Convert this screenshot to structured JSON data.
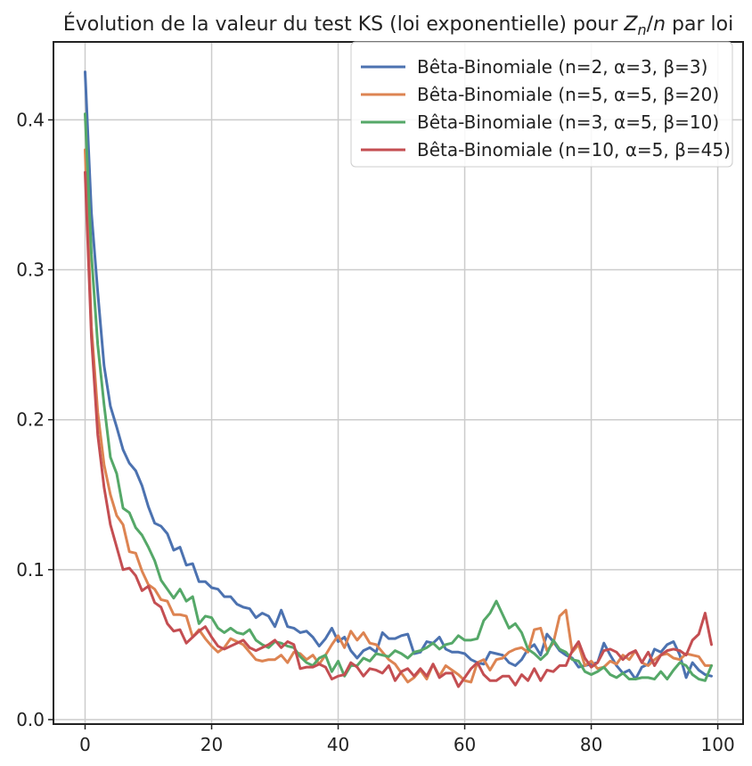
{
  "chart_data": {
    "type": "line",
    "title": "Évolution de la valeur du test KS (loi exponentielle) pour Z_n/n par loi",
    "title_parts": {
      "prefix": "Évolution de la valeur du test KS (loi exponentielle) pour ",
      "var_z": "Z",
      "var_sub": "n",
      "slash": "/",
      "var_n": "n",
      "suffix": " par loi"
    },
    "xlabel": "",
    "ylabel": "",
    "xlim": [
      -5,
      104
    ],
    "ylim": [
      -0.003,
      0.452
    ],
    "xticks": [
      0,
      20,
      40,
      60,
      80,
      100
    ],
    "xtick_labels": [
      "0",
      "20",
      "40",
      "60",
      "80",
      "100"
    ],
    "yticks": [
      0.0,
      0.1,
      0.2,
      0.3,
      0.4
    ],
    "ytick_labels": [
      "0.0",
      "0.1",
      "0.2",
      "0.3",
      "0.4"
    ],
    "grid": true,
    "legend_position": "top-right",
    "x_start": 0,
    "x_step": 1,
    "series": [
      {
        "name": "Bêta-Binomiale (n=2, α=3, β=3)",
        "color": "#4c72b0",
        "values": [
          0.432,
          0.338,
          0.285,
          0.236,
          0.209,
          0.195,
          0.18,
          0.171,
          0.166,
          0.156,
          0.142,
          0.131,
          0.129,
          0.124,
          0.113,
          0.115,
          0.103,
          0.104,
          0.092,
          0.092,
          0.088,
          0.087,
          0.082,
          0.082,
          0.077,
          0.075,
          0.074,
          0.068,
          0.071,
          0.069,
          0.062,
          0.073,
          0.062,
          0.061,
          0.058,
          0.059,
          0.055,
          0.049,
          0.054,
          0.061,
          0.052,
          0.055,
          0.046,
          0.041,
          0.046,
          0.048,
          0.045,
          0.058,
          0.054,
          0.054,
          0.056,
          0.057,
          0.044,
          0.045,
          0.052,
          0.051,
          0.055,
          0.047,
          0.045,
          0.045,
          0.044,
          0.04,
          0.038,
          0.037,
          0.045,
          0.044,
          0.043,
          0.038,
          0.036,
          0.04,
          0.047,
          0.05,
          0.043,
          0.057,
          0.052,
          0.046,
          0.043,
          0.041,
          0.035,
          0.036,
          0.037,
          0.038,
          0.051,
          0.043,
          0.036,
          0.031,
          0.033,
          0.027,
          0.035,
          0.037,
          0.047,
          0.045,
          0.05,
          0.052,
          0.043,
          0.028,
          0.038,
          0.033,
          0.03,
          0.029
        ]
      },
      {
        "name": "Bêta-Binomiale (n=5, α=5, β=20)",
        "color": "#dd8452",
        "values": [
          0.38,
          0.262,
          0.205,
          0.17,
          0.15,
          0.136,
          0.13,
          0.112,
          0.111,
          0.099,
          0.09,
          0.087,
          0.08,
          0.079,
          0.07,
          0.07,
          0.069,
          0.055,
          0.06,
          0.054,
          0.049,
          0.045,
          0.048,
          0.054,
          0.052,
          0.05,
          0.045,
          0.04,
          0.039,
          0.04,
          0.04,
          0.043,
          0.038,
          0.045,
          0.044,
          0.04,
          0.043,
          0.037,
          0.043,
          0.05,
          0.056,
          0.048,
          0.059,
          0.053,
          0.058,
          0.051,
          0.05,
          0.045,
          0.04,
          0.037,
          0.031,
          0.025,
          0.028,
          0.033,
          0.027,
          0.037,
          0.029,
          0.036,
          0.033,
          0.03,
          0.026,
          0.025,
          0.038,
          0.04,
          0.033,
          0.04,
          0.041,
          0.045,
          0.047,
          0.048,
          0.045,
          0.06,
          0.061,
          0.046,
          0.051,
          0.069,
          0.073,
          0.045,
          0.05,
          0.036,
          0.039,
          0.034,
          0.035,
          0.039,
          0.037,
          0.043,
          0.04,
          0.046,
          0.038,
          0.036,
          0.04,
          0.043,
          0.044,
          0.041,
          0.04,
          0.044,
          0.043,
          0.042,
          0.036,
          0.036
        ]
      },
      {
        "name": "Bêta-Binomiale (n=3, α=5, β=10)",
        "color": "#55a868",
        "values": [
          0.404,
          0.31,
          0.25,
          0.21,
          0.175,
          0.164,
          0.141,
          0.138,
          0.128,
          0.123,
          0.115,
          0.106,
          0.093,
          0.087,
          0.081,
          0.087,
          0.079,
          0.082,
          0.064,
          0.069,
          0.068,
          0.061,
          0.058,
          0.061,
          0.058,
          0.057,
          0.06,
          0.053,
          0.05,
          0.048,
          0.052,
          0.051,
          0.049,
          0.048,
          0.042,
          0.038,
          0.036,
          0.041,
          0.043,
          0.032,
          0.039,
          0.029,
          0.036,
          0.036,
          0.041,
          0.039,
          0.044,
          0.043,
          0.042,
          0.046,
          0.044,
          0.041,
          0.045,
          0.046,
          0.048,
          0.051,
          0.047,
          0.05,
          0.051,
          0.056,
          0.053,
          0.053,
          0.054,
          0.066,
          0.071,
          0.079,
          0.07,
          0.061,
          0.064,
          0.058,
          0.047,
          0.044,
          0.04,
          0.044,
          0.053,
          0.047,
          0.045,
          0.04,
          0.039,
          0.032,
          0.03,
          0.032,
          0.035,
          0.03,
          0.028,
          0.031,
          0.027,
          0.027,
          0.028,
          0.028,
          0.027,
          0.032,
          0.027,
          0.033,
          0.038,
          0.036,
          0.03,
          0.027,
          0.026,
          0.036
        ]
      },
      {
        "name": "Bêta-Binomiale (n=10, α=5, β=45)",
        "color": "#c44e52",
        "values": [
          0.365,
          0.255,
          0.19,
          0.155,
          0.13,
          0.115,
          0.1,
          0.101,
          0.096,
          0.086,
          0.089,
          0.078,
          0.075,
          0.064,
          0.059,
          0.06,
          0.051,
          0.055,
          0.059,
          0.062,
          0.055,
          0.049,
          0.047,
          0.049,
          0.051,
          0.053,
          0.048,
          0.046,
          0.048,
          0.05,
          0.053,
          0.048,
          0.052,
          0.05,
          0.034,
          0.035,
          0.035,
          0.037,
          0.035,
          0.027,
          0.029,
          0.03,
          0.038,
          0.035,
          0.029,
          0.034,
          0.033,
          0.031,
          0.036,
          0.026,
          0.032,
          0.034,
          0.029,
          0.034,
          0.029,
          0.037,
          0.028,
          0.031,
          0.031,
          0.022,
          0.028,
          0.034,
          0.038,
          0.03,
          0.026,
          0.026,
          0.029,
          0.029,
          0.023,
          0.03,
          0.026,
          0.034,
          0.026,
          0.033,
          0.032,
          0.036,
          0.036,
          0.046,
          0.052,
          0.041,
          0.035,
          0.038,
          0.046,
          0.047,
          0.045,
          0.04,
          0.044,
          0.046,
          0.038,
          0.045,
          0.036,
          0.043,
          0.046,
          0.047,
          0.046,
          0.043,
          0.053,
          0.057,
          0.071,
          0.05
        ]
      }
    ]
  }
}
